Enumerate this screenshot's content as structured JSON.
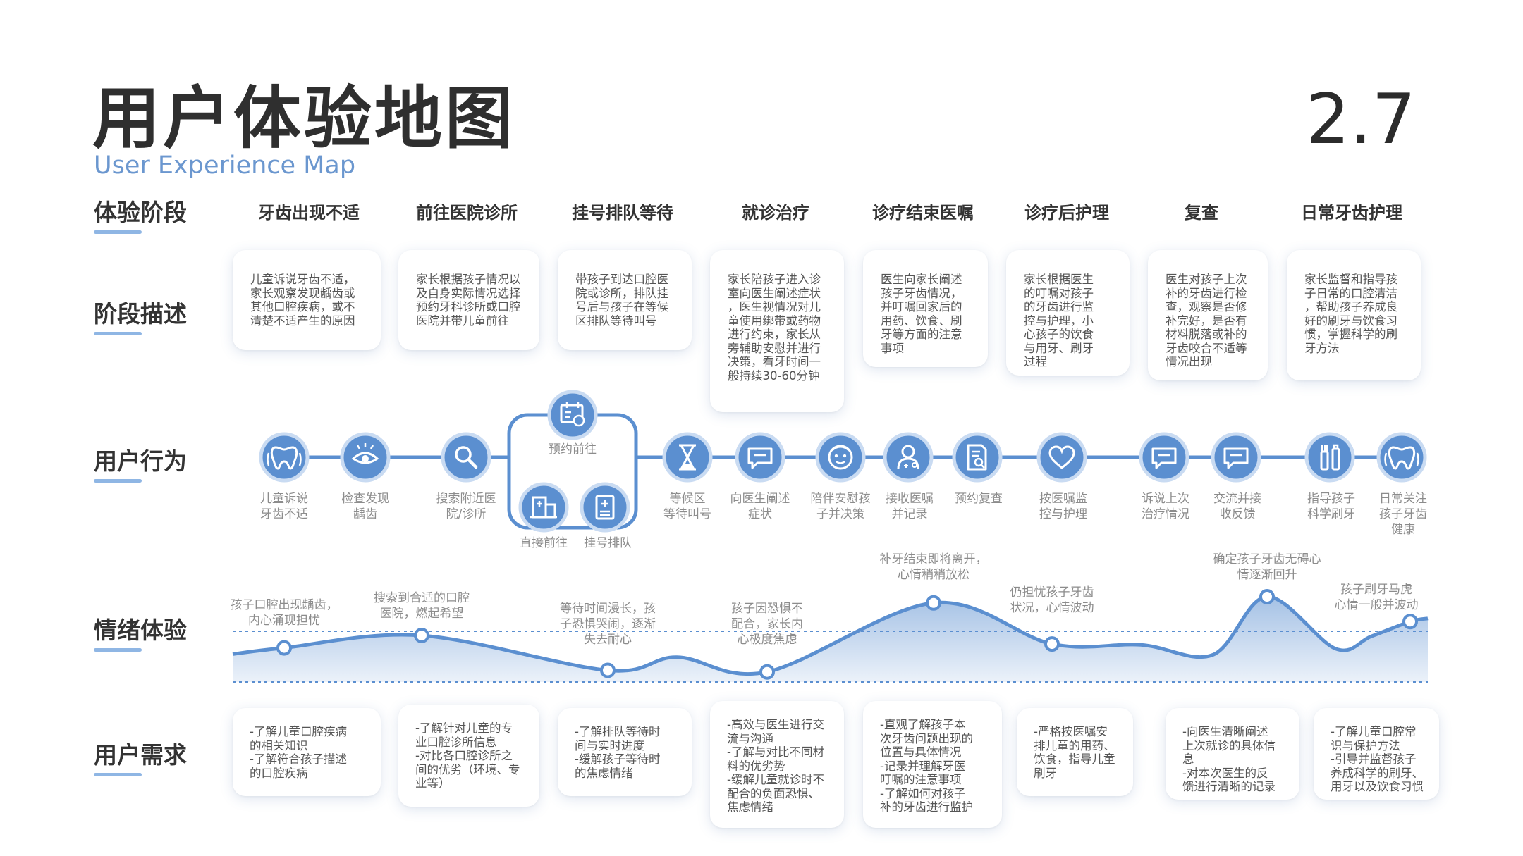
{
  "header": {
    "title": "用户体验地图",
    "subtitle": "User Experience Map",
    "page_number": "2.7"
  },
  "row_labels": {
    "stages": "体验阶段",
    "descriptions": "阶段描述",
    "actions": "用户行为",
    "emotions": "情绪体验",
    "needs": "用户需求"
  },
  "stages": [
    {
      "name": "牙齿出现不适",
      "description": "儿童诉说牙齿不适，\n家长观察发现龋齿或\n其他口腔疾病，或不\n清楚不适产生的原因",
      "need": "-了解儿童口腔疾病\n的相关知识\n-了解符合孩子描述\n的口腔疾病"
    },
    {
      "name": "前往医院诊所",
      "description": "家长根据孩子情况以\n及自身实际情况选择\n预约牙科诊所或口腔\n医院并带儿童前往",
      "need": "-了解针对儿童的专\n业口腔诊所信息\n-对比各口腔诊所之\n间的优劣（环境、专\n业等）"
    },
    {
      "name": "挂号排队等待",
      "description": "带孩子到达口腔医\n院或诊所，排队挂\n号后与孩子在等候\n区排队等待叫号",
      "need": "-了解排队等待时\n间与实时进度\n-缓解孩子等待时\n的焦虑情绪"
    },
    {
      "name": "就诊治疗",
      "description": "家长陪孩子进入诊\n室向医生阐述症状\n，医生视情况对儿\n童使用绑带或药物\n进行约束，家长从\n旁辅助安慰并进行\n决策，看牙时间一\n般持续30-60分钟",
      "need": "-高效与医生进行交\n流与沟通\n-了解与对比不同材\n料的优劣势\n-缓解儿童就诊时不\n配合的负面恐惧、\n焦虑情绪"
    },
    {
      "name": "诊疗结束医嘱",
      "description": "医生向家长阐述\n孩子牙齿情况，\n并叮嘱回家后的\n用药、饮食、刷\n牙等方面的注意\n事项",
      "need": "-直观了解孩子本\n次牙齿问题出现的\n位置与具体情况\n-记录并理解牙医\n叮嘱的注意事项\n-了解如何对孩子\n补的牙齿进行监护"
    },
    {
      "name": "诊疗后护理",
      "description": "家长根据医生\n的叮嘱对孩子\n的牙齿进行监\n控与护理，小\n心孩子的饮食\n与用牙、刷牙\n过程",
      "need": "-严格按医嘱安\n排儿童的用药、\n饮食，指导儿童\n刷牙"
    },
    {
      "name": "复查",
      "description": "医生对孩子上次\n补的牙齿进行检\n查，观察是否修\n补完好，是否有\n材料脱落或补的\n牙齿咬合不适等\n情况出现",
      "need": "-向医生清晰阐述\n上次就诊的具体信\n息\n-对本次医生的反\n馈进行清晰的记录"
    },
    {
      "name": "日常牙齿护理",
      "description": "家长监督和指导孩\n子日常的口腔清洁\n，帮助孩子养成良\n好的刷牙与饮食习\n惯，掌握科学的刷\n牙方法",
      "need": "-了解儿童口腔常\n识与保护方法\n-引导并监督孩子\n养成科学的刷牙、\n用牙以及饮食习惯"
    }
  ],
  "actions": [
    {
      "icon": "tooth-icon",
      "label": "儿童诉说\n牙齿不适"
    },
    {
      "icon": "eye-icon",
      "label": "检查发现\n龋齿"
    },
    {
      "icon": "search-icon",
      "label": "搜索附近医\n院/诊所"
    },
    {
      "icon": "calendar-icon",
      "label": "预约前往"
    },
    {
      "icon": "hospital-icon",
      "label": "直接前往"
    },
    {
      "icon": "clipboard-icon",
      "label": "挂号排队"
    },
    {
      "icon": "hourglass-icon",
      "label": "等候区\n等待叫号"
    },
    {
      "icon": "chat-icon",
      "label": "向医生阐述\n症状"
    },
    {
      "icon": "child-face-icon",
      "label": "陪伴安慰孩\n子并决策"
    },
    {
      "icon": "doctor-icon",
      "label": "接收医嘱\n并记录"
    },
    {
      "icon": "document-search-icon",
      "label": "预约复查"
    },
    {
      "icon": "heart-icon",
      "label": "按医嘱监\n控与护理"
    },
    {
      "icon": "chat-icon",
      "label": "诉说上次\n治疗情况"
    },
    {
      "icon": "chat-icon",
      "label": "交流并接\n收反馈"
    },
    {
      "icon": "toothbrush-icon",
      "label": "指导孩子\n科学刷牙"
    },
    {
      "icon": "tooth-icon",
      "label": "日常关注\n孩子牙齿\n健康"
    }
  ],
  "emotions": [
    {
      "text": "孩子口腔出现龋齿，\n内心涌现担忧",
      "level": 0.44
    },
    {
      "text": "搜索到合适的口腔\n医院，燃起希望",
      "level": 0.6
    },
    {
      "text": "等待时间漫长，孩\n子恐惧哭闹，逐渐\n失去耐心",
      "level": 0.15
    },
    {
      "text": "孩子因恐惧不\n配合，家长内\n心极度焦虑",
      "level": 0.13
    },
    {
      "text": "补牙结束即将离开，\n心情稍稍放松",
      "level": 1.02
    },
    {
      "text": "仍担忧孩子牙齿\n状况，心情波动",
      "level": 0.49
    },
    {
      "text": "确定孩子牙齿无碍心\n情逐渐回升",
      "level": 1.1
    },
    {
      "text": "孩子刷牙马虎\n心情一般并波动",
      "level": 0.78
    }
  ],
  "colors": {
    "accent": "#5b8fd0",
    "accent_light": "#c9dbf2",
    "text": "#333333",
    "muted": "#8c8c8c"
  }
}
